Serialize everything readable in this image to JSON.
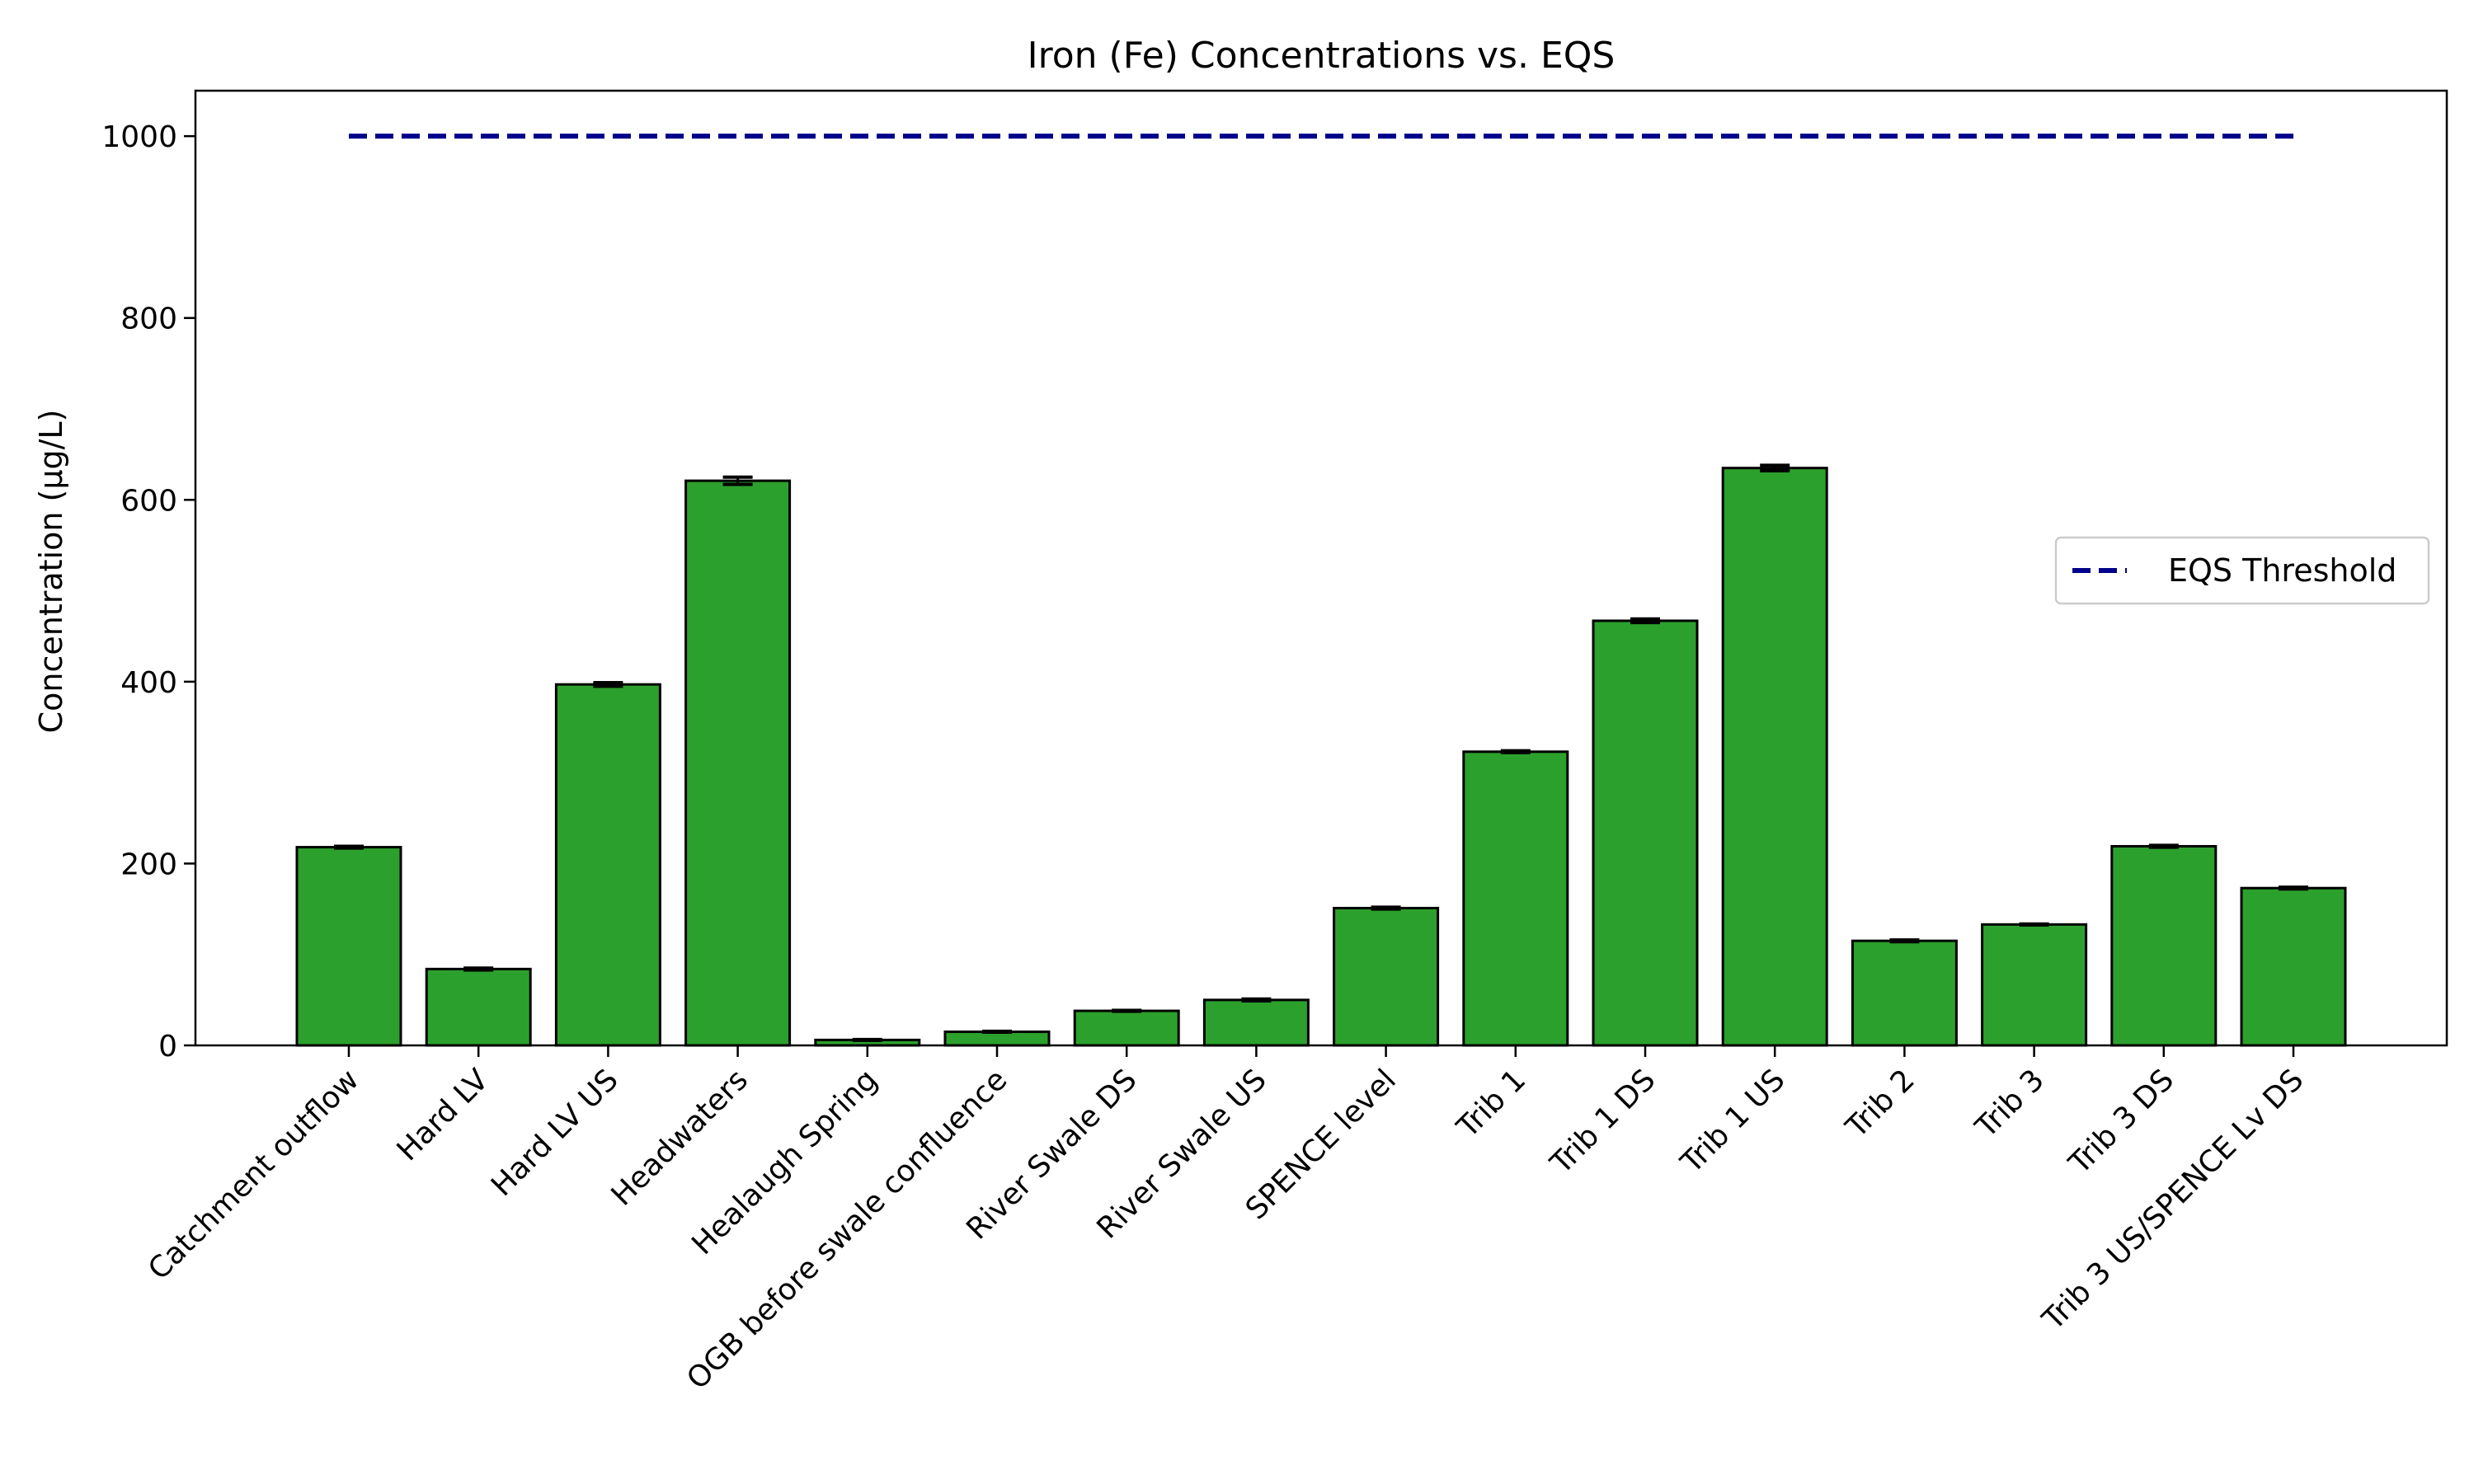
{
  "chart_data": {
    "type": "bar",
    "title": "Iron (Fe) Concentrations vs. EQS",
    "xlabel": "",
    "ylabel": "Concentration (µg/L)",
    "ylim": [
      0,
      1050
    ],
    "yticks": [
      0,
      200,
      400,
      600,
      800,
      1000
    ],
    "categories": [
      "Catchment outflow",
      "Hard LV",
      "Hard LV US",
      "Headwaters",
      "Healaugh Spring",
      "OGB before swale confluence",
      "River Swale DS",
      "River Swale US",
      "SPENCE level",
      "Trib 1",
      "Trib 1 DS",
      "Trib 1 US",
      "Trib 2",
      "Trib 3",
      "Trib 3 DS",
      "Trib 3 US/SPENCE Lv DS"
    ],
    "values": [
      218,
      84,
      397,
      621,
      6,
      15,
      38,
      50,
      151,
      323,
      467,
      635,
      115,
      133,
      219,
      173
    ],
    "errors": [
      1,
      1,
      2,
      4,
      0.5,
      0.5,
      0.5,
      1,
      1,
      1,
      2,
      3,
      1,
      0.5,
      1,
      1
    ],
    "bar_color": "#2ca02c",
    "edge_color": "#000000",
    "threshold": {
      "name": "EQS Threshold",
      "value": 1000,
      "color": "#00008b",
      "style": "dashed"
    },
    "legend": {
      "position": "center-right",
      "entries": [
        "EQS Threshold"
      ]
    },
    "grid": false
  }
}
